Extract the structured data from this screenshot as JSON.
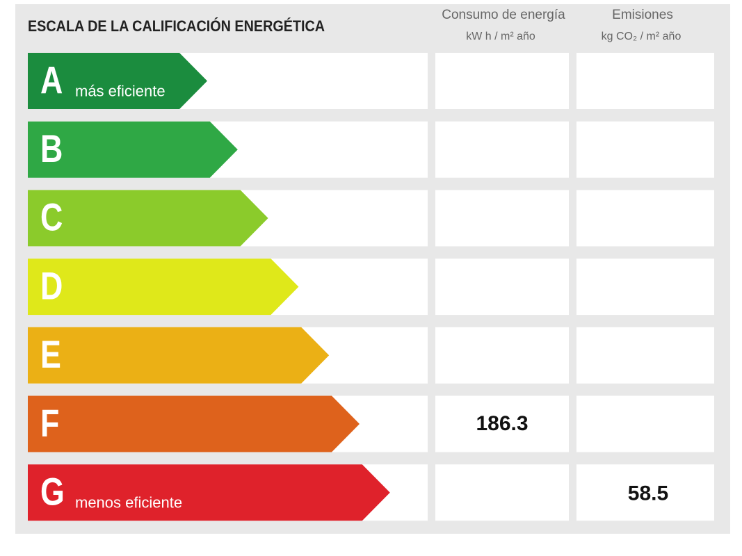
{
  "title": "ESCALA DE LA CALIFICACIÓN ENERGÉTICA",
  "columns": [
    {
      "name": "Consumo de energía",
      "unit": "kW h / m² año"
    },
    {
      "name": "Emisiones",
      "unit": "kg CO₂ / m² año"
    }
  ],
  "rows": [
    {
      "letter": "A",
      "label": "más eficiente",
      "color": "#1b8c3e"
    },
    {
      "letter": "B",
      "color": "#2fa845"
    },
    {
      "letter": "C",
      "color": "#8bcb2b"
    },
    {
      "letter": "D",
      "color": "#dfe81a"
    },
    {
      "letter": "E",
      "color": "#ebb015"
    },
    {
      "letter": "F",
      "color": "#de621c",
      "consumption": 186.3
    },
    {
      "letter": "G",
      "label": "menos eficiente",
      "color": "#df222b",
      "emissions": 58.5
    }
  ]
}
